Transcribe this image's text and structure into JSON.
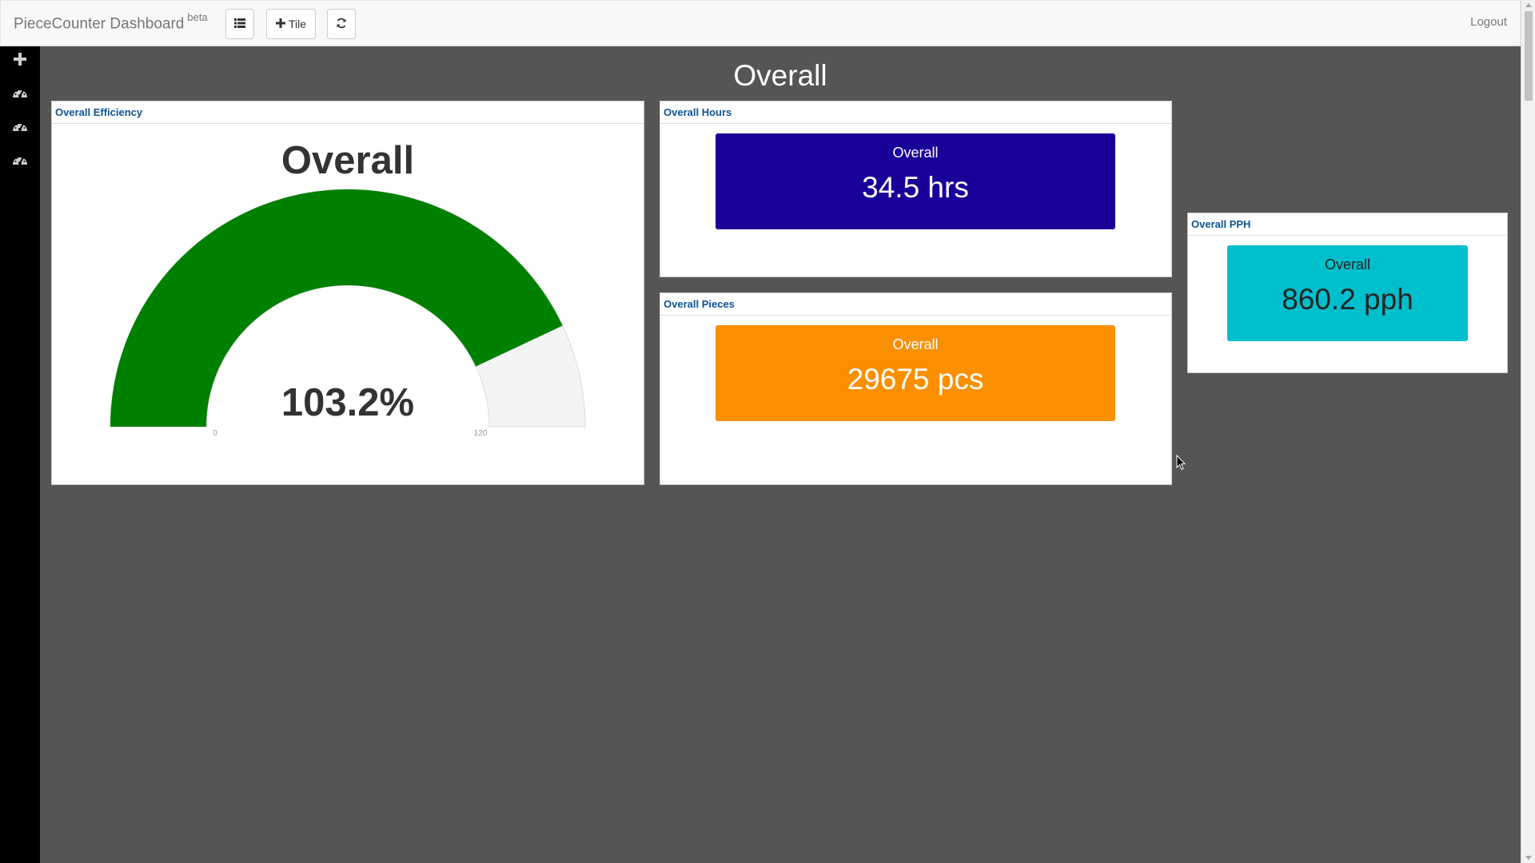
{
  "navbar": {
    "brand": "PieceCounter Dashboard",
    "brand_badge": "beta",
    "tile_button_label": "Tile",
    "logout_label": "Logout"
  },
  "sidebar": {
    "items": [
      {
        "icon": "plus-icon"
      },
      {
        "icon": "dashboard-icon"
      },
      {
        "icon": "dashboard-icon"
      },
      {
        "icon": "dashboard-icon"
      }
    ]
  },
  "page": {
    "title": "Overall"
  },
  "tiles": {
    "efficiency": {
      "header": "Overall Efficiency",
      "gauge_title": "Overall",
      "value_text": "103.2%",
      "value": 103.2,
      "min": 0,
      "max": 120,
      "min_label": "0",
      "max_label": "120",
      "fill_color": "#008000",
      "track_color": "#f4f4f4"
    },
    "hours": {
      "header": "Overall Hours",
      "caption": "Overall",
      "value": "34.5 hrs",
      "color": "#1a0099"
    },
    "pieces": {
      "header": "Overall Pieces",
      "caption": "Overall",
      "value": "29675 pcs",
      "color": "#fa8f00"
    },
    "pph": {
      "header": "Overall PPH",
      "caption": "Overall",
      "value": "860.2 pph",
      "color": "#00bfcc",
      "text_color": "#222222"
    }
  }
}
